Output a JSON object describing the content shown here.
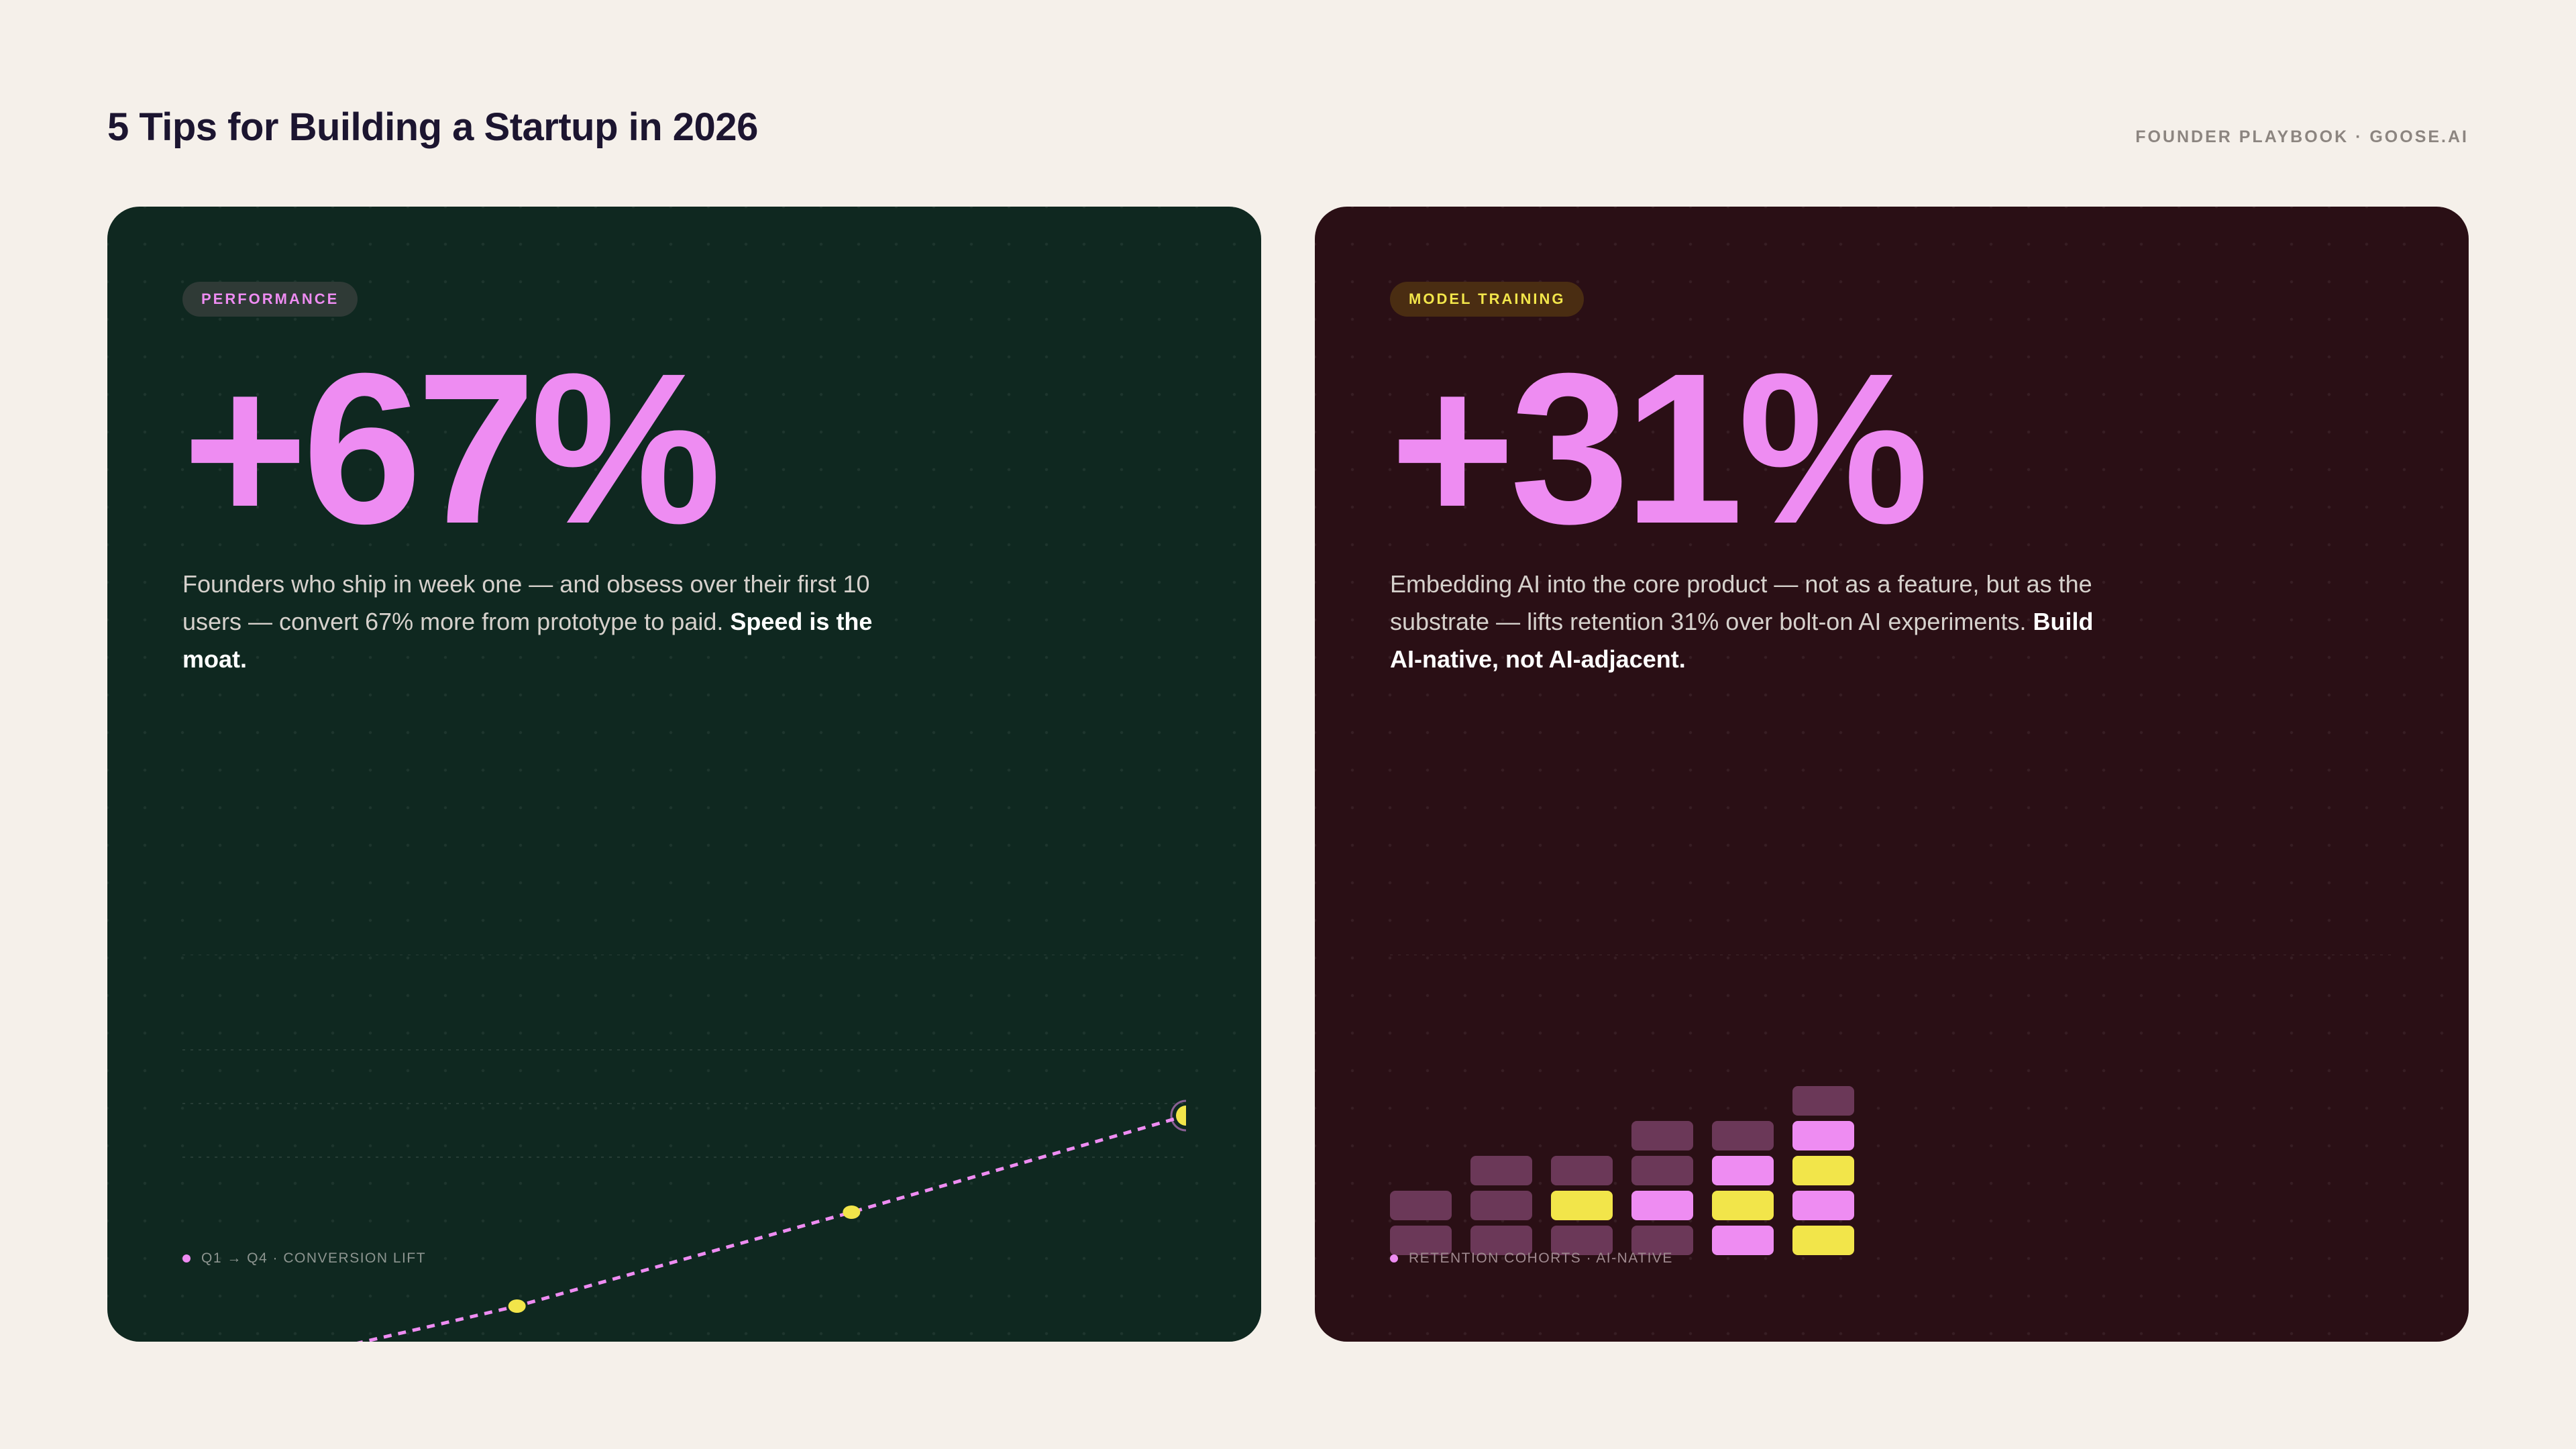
{
  "header": {
    "title": "5 Tips for Building a Startup in 2026",
    "meta": "FOUNDER PLAYBOOK · GOOSE.AI"
  },
  "cards": [
    {
      "badge": "PERFORMANCE",
      "stat": "+67%",
      "description": "Founders who ship in week one — and obsess over their first 10 users — convert 67% more from prototype to paid. ",
      "emphasis": "Speed is the moat.",
      "caption": "Q1 → Q4 · CONVERSION LIFT"
    },
    {
      "badge": "MODEL TRAINING",
      "stat": "+31%",
      "description": "Embedding AI into the core product — not as a feature, but as the substrate — lifts retention 31% over bolt-on AI experiments. ",
      "emphasis": "Build AI-native, not AI-adjacent.",
      "caption": "RETENTION COHORTS · AI-NATIVE"
    }
  ],
  "colors": {
    "accent_pink": "#ee8cf2",
    "accent_yellow": "#f2e54a",
    "block_muted": "#6b3858",
    "card_green": "#0f2820",
    "card_maroon": "#2a0f15"
  },
  "chart_data": [
    {
      "type": "line",
      "x": [
        0,
        1,
        2,
        3
      ],
      "values": [
        0,
        0.29,
        0.64,
        1.0
      ],
      "highlight_points": [
        1,
        2,
        3
      ],
      "ylim": [
        0,
        1.6
      ],
      "grid": true
    },
    {
      "type": "bar",
      "columns": [
        [
          "muted",
          "muted"
        ],
        [
          "muted",
          "muted",
          "muted"
        ],
        [
          "muted",
          "yellow",
          "muted"
        ],
        [
          "muted",
          "pink",
          "muted",
          "muted"
        ],
        [
          "pink",
          "yellow",
          "pink",
          "muted"
        ],
        [
          "yellow",
          "pink",
          "yellow",
          "pink",
          "muted"
        ]
      ]
    }
  ]
}
